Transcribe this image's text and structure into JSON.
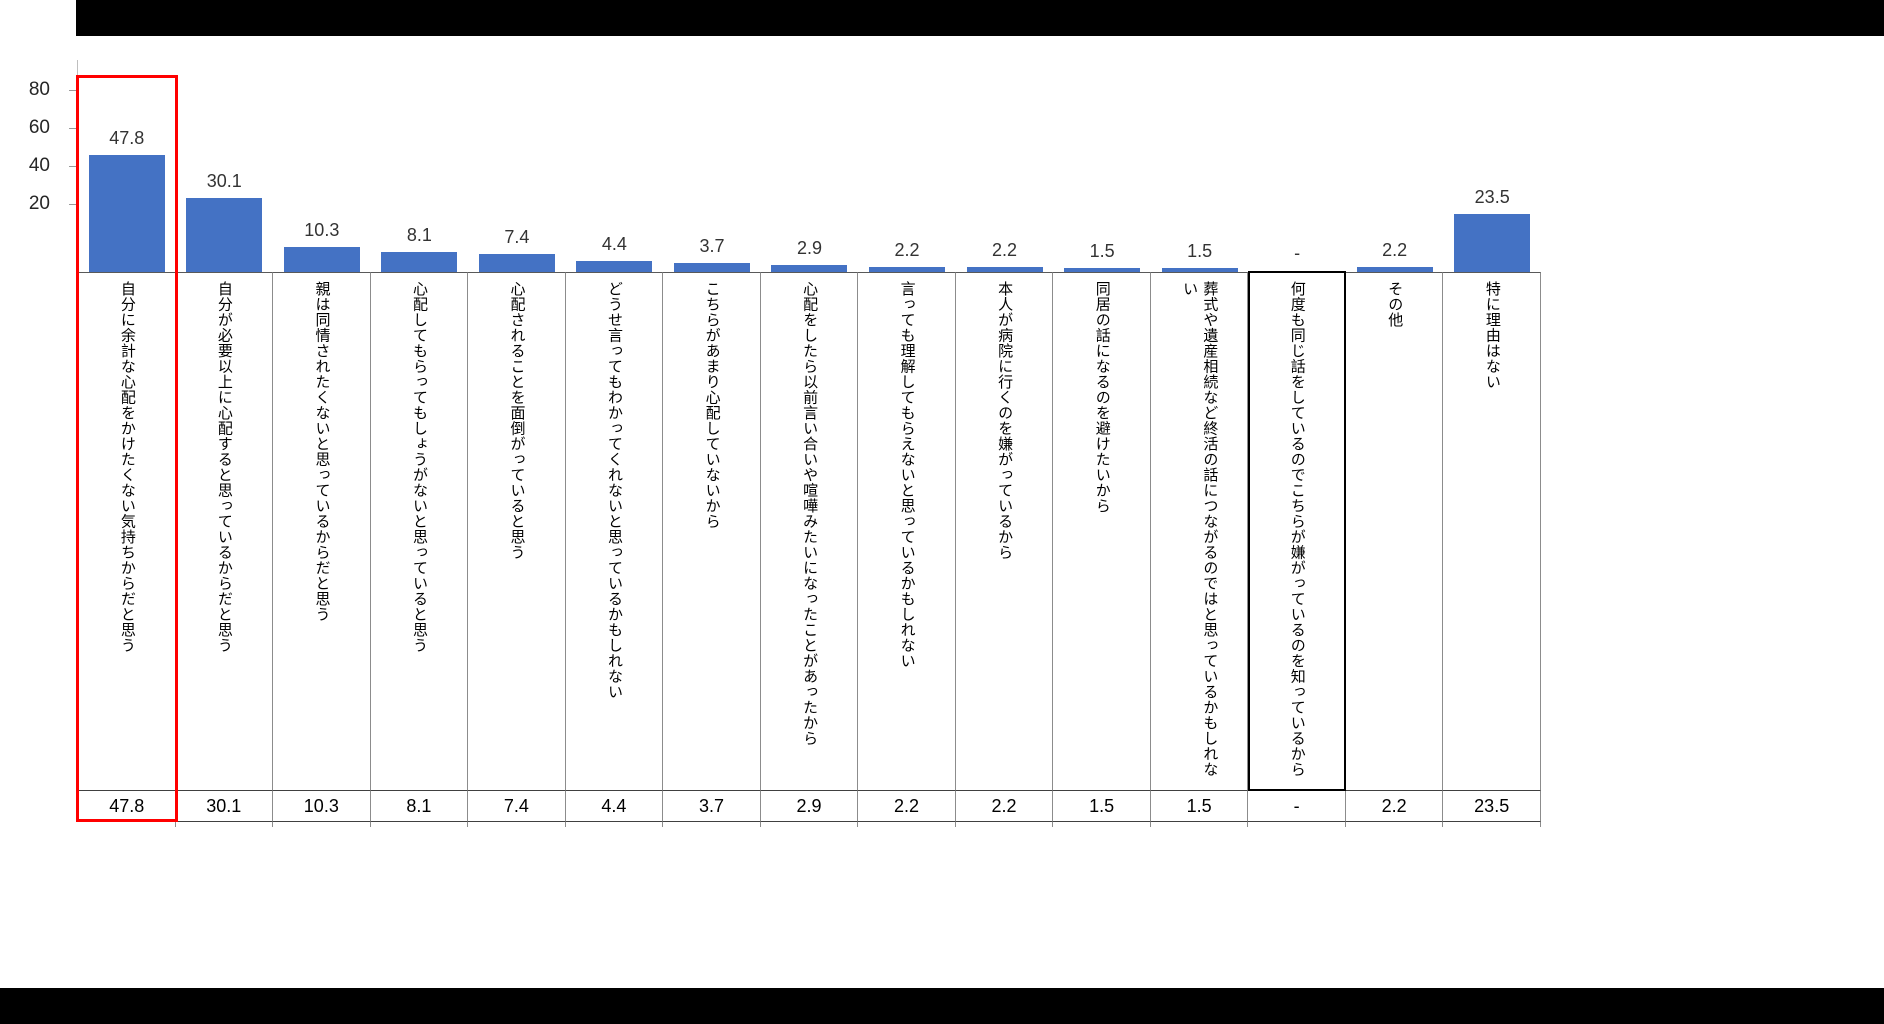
{
  "chart_data": {
    "type": "bar",
    "title": "",
    "xlabel": "",
    "ylabel": "",
    "grid": false,
    "legend": "none",
    "ylim": [
      0,
      100
    ],
    "ytick_labels": [
      "80",
      "60",
      "40",
      "20"
    ],
    "bar_color": "#4472C4",
    "highlight_box_color": "#FF0000",
    "highlighted_category_index": 0,
    "outlined_category_index": 12,
    "categories": [
      "自分に余計な心配をかけたくない気持ちからだと思う",
      "自分が必要以上に心配すると思っているからだと思う",
      "親は同情されたくないと思っているからだと思う",
      "心配してもらってもしょうがないと思っていると思う",
      "心配されることを面倒がっていると思う",
      "どうせ言ってもわかってくれないと思っているかもしれない",
      "こちらがあまり心配していないから",
      "心配をしたら以前言い合いや喧嘩みたいになったことがあったから",
      "言っても理解してもらえないと思っているかもしれない",
      "本人が病院に行くのを嫌がっているから",
      "同居の話になるのを避けたいから",
      "葬式や遺産相続など終活の話につながるのではと思っているかもしれない",
      "何度も同じ話をしているのでこちらが嫌がっているのを知っているから",
      "その他",
      "特に理由はない"
    ],
    "values": [
      47.8,
      30.1,
      10.3,
      8.1,
      7.4,
      4.4,
      3.7,
      2.9,
      2.2,
      2.2,
      1.5,
      1.5,
      null,
      2.2,
      23.5
    ],
    "value_labels": [
      "47.8",
      "30.1",
      "10.3",
      "8.1",
      "7.4",
      "4.4",
      "3.7",
      "2.9",
      "2.2",
      "2.2",
      "1.5",
      "1.5",
      "-",
      "2.2",
      "23.5"
    ],
    "table_row_values": [
      "47.8",
      "30.1",
      "10.3",
      "8.1",
      "7.4",
      "4.4",
      "3.7",
      "2.9",
      "2.2",
      "2.2",
      "1.5",
      "1.5",
      "-",
      "2.2",
      "23.5"
    ]
  }
}
